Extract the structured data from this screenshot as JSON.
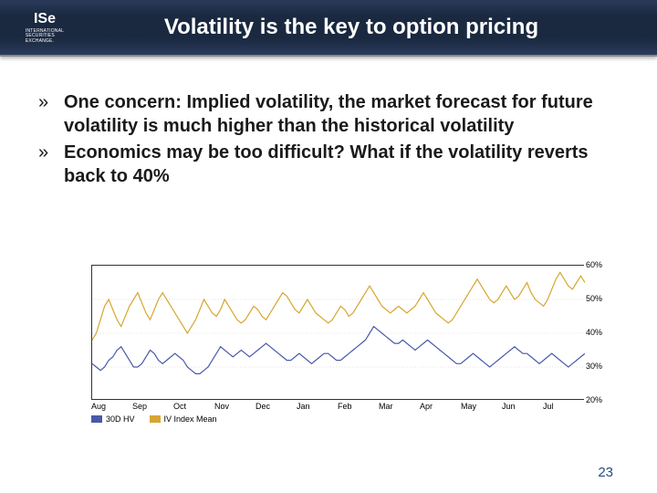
{
  "header": {
    "logo_text": "ISe",
    "logo_tag1": "INTERNATIONAL",
    "logo_tag2": "SECURITIES",
    "logo_tag3": "EXCHANGE.",
    "title": "Volatility is the key to option pricing"
  },
  "bullets": [
    "One concern:  Implied volatility, the market forecast for future volatility is much higher than the historical volatility",
    "Economics may be too difficult?  What if the volatility reverts back to 40%"
  ],
  "chart": {
    "type": "line",
    "ylim": [
      20,
      60
    ],
    "ytick_step": 10,
    "y_ticks": [
      "60%",
      "50%",
      "40%",
      "30%",
      "20%"
    ],
    "x_labels": [
      "Aug",
      "Sep",
      "Oct",
      "Nov",
      "Dec",
      "Jan",
      "Feb",
      "Mar",
      "Apr",
      "May",
      "Jun",
      "Jul"
    ],
    "legend": [
      {
        "label": "30D HV",
        "color": "#4a5aa8"
      },
      {
        "label": "IV Index Mean",
        "color": "#d6a730"
      }
    ],
    "background_color": "#ffffff",
    "grid_color": "#cccccc",
    "border_color": "#333333",
    "label_fontsize": 9,
    "series": {
      "hv30": {
        "color": "#4a5aa8",
        "line_width": 1.2,
        "values": [
          31,
          30,
          29,
          30,
          32,
          33,
          35,
          36,
          34,
          32,
          30,
          30,
          31,
          33,
          35,
          34,
          32,
          31,
          32,
          33,
          34,
          33,
          32,
          30,
          29,
          28,
          28,
          29,
          30,
          32,
          34,
          36,
          35,
          34,
          33,
          34,
          35,
          34,
          33,
          34,
          35,
          36,
          37,
          36,
          35,
          34,
          33,
          32,
          32,
          33,
          34,
          33,
          32,
          31,
          32,
          33,
          34,
          34,
          33,
          32,
          32,
          33,
          34,
          35,
          36,
          37,
          38,
          40,
          42,
          41,
          40,
          39,
          38,
          37,
          37,
          38,
          37,
          36,
          35,
          36,
          37,
          38,
          37,
          36,
          35,
          34,
          33,
          32,
          31,
          31,
          32,
          33,
          34,
          33,
          32,
          31,
          30,
          31,
          32,
          33,
          34,
          35,
          36,
          35,
          34,
          34,
          33,
          32,
          31,
          32,
          33,
          34,
          33,
          32,
          31,
          30,
          31,
          32,
          33,
          34
        ]
      },
      "iv_mean": {
        "color": "#d6a730",
        "line_width": 1.2,
        "values": [
          38,
          40,
          44,
          48,
          50,
          47,
          44,
          42,
          45,
          48,
          50,
          52,
          49,
          46,
          44,
          47,
          50,
          52,
          50,
          48,
          46,
          44,
          42,
          40,
          42,
          44,
          47,
          50,
          48,
          46,
          45,
          47,
          50,
          48,
          46,
          44,
          43,
          44,
          46,
          48,
          47,
          45,
          44,
          46,
          48,
          50,
          52,
          51,
          49,
          47,
          46,
          48,
          50,
          48,
          46,
          45,
          44,
          43,
          44,
          46,
          48,
          47,
          45,
          46,
          48,
          50,
          52,
          54,
          52,
          50,
          48,
          47,
          46,
          47,
          48,
          47,
          46,
          47,
          48,
          50,
          52,
          50,
          48,
          46,
          45,
          44,
          43,
          44,
          46,
          48,
          50,
          52,
          54,
          56,
          54,
          52,
          50,
          49,
          50,
          52,
          54,
          52,
          50,
          51,
          53,
          55,
          52,
          50,
          49,
          48,
          50,
          53,
          56,
          58,
          56,
          54,
          53,
          55,
          57,
          55
        ]
      }
    }
  },
  "page_number": "23"
}
